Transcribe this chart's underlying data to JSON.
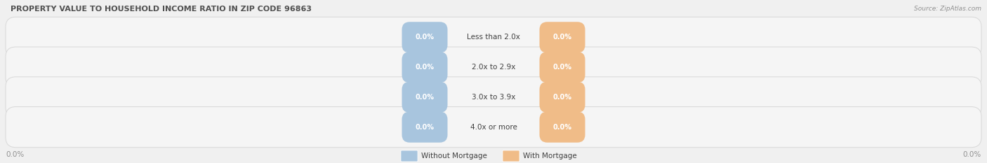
{
  "title": "PROPERTY VALUE TO HOUSEHOLD INCOME RATIO IN ZIP CODE 96863",
  "source_text": "Source: ZipAtlas.com",
  "categories": [
    "Less than 2.0x",
    "2.0x to 2.9x",
    "3.0x to 3.9x",
    "4.0x or more"
  ],
  "without_mortgage": [
    0.0,
    0.0,
    0.0,
    0.0
  ],
  "with_mortgage": [
    0.0,
    0.0,
    0.0,
    0.0
  ],
  "bar_color_without": "#a8c5de",
  "bar_color_with": "#f0bc88",
  "background_color": "#f0f0f0",
  "title_color": "#505050",
  "category_text_color": "#404040",
  "axis_label_color": "#909090",
  "source_color": "#909090",
  "legend_without_color": "#a8c5de",
  "legend_with_color": "#f0bc88",
  "figsize": [
    14.06,
    2.33
  ],
  "dpi": 100
}
